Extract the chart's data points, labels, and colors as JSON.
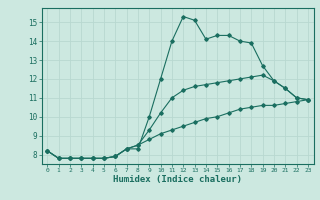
{
  "xlabel": "Humidex (Indice chaleur)",
  "background_color": "#cce8e0",
  "grid_color": "#b8d8d0",
  "line_color": "#1a6e60",
  "x_values": [
    0,
    1,
    2,
    3,
    4,
    5,
    6,
    7,
    8,
    9,
    10,
    11,
    12,
    13,
    14,
    15,
    16,
    17,
    18,
    19,
    20,
    21,
    22,
    23
  ],
  "series1": [
    8.2,
    7.8,
    7.8,
    7.8,
    7.8,
    7.8,
    7.9,
    8.3,
    8.3,
    10.0,
    12.0,
    14.0,
    15.3,
    15.1,
    14.1,
    14.3,
    14.3,
    14.0,
    13.9,
    12.7,
    11.9,
    11.5,
    11.0,
    10.9
  ],
  "series2": [
    8.2,
    7.8,
    7.8,
    7.8,
    7.8,
    7.8,
    7.9,
    8.3,
    8.5,
    9.3,
    10.2,
    11.0,
    11.4,
    11.6,
    11.7,
    11.8,
    11.9,
    12.0,
    12.1,
    12.2,
    11.9,
    11.5,
    11.0,
    10.9
  ],
  "series3": [
    8.2,
    7.8,
    7.8,
    7.8,
    7.8,
    7.8,
    7.9,
    8.3,
    8.5,
    8.8,
    9.1,
    9.3,
    9.5,
    9.7,
    9.9,
    10.0,
    10.2,
    10.4,
    10.5,
    10.6,
    10.6,
    10.7,
    10.8,
    10.9
  ],
  "ylim": [
    7.5,
    15.75
  ],
  "xlim": [
    -0.5,
    23.5
  ],
  "yticks": [
    8,
    9,
    10,
    11,
    12,
    13,
    14,
    15
  ],
  "xticks": [
    0,
    1,
    2,
    3,
    4,
    5,
    6,
    7,
    8,
    9,
    10,
    11,
    12,
    13,
    14,
    15,
    16,
    17,
    18,
    19,
    20,
    21,
    22,
    23
  ]
}
